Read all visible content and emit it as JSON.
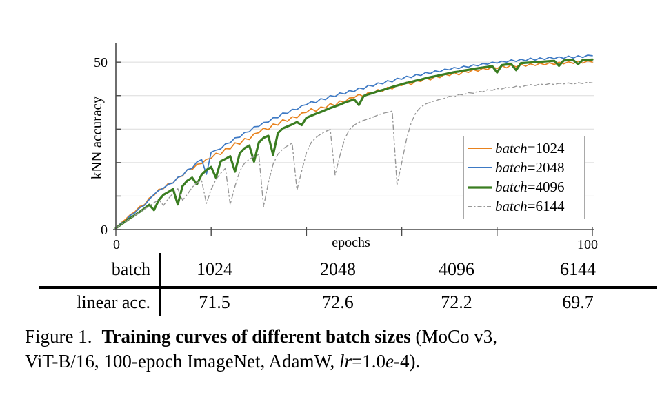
{
  "style": {
    "background": "#ffffff",
    "grid_color": "#dbdbdb",
    "axis_color": "#4a4a4a",
    "text_color": "#000000",
    "legend_border": "#a9a9a9"
  },
  "chart_data": {
    "type": "line",
    "xlabel": "epochs",
    "ylabel": "kNN accuracy",
    "xlim": [
      0,
      100
    ],
    "ylim": [
      0,
      55.8
    ],
    "xticks": [
      0,
      20,
      40,
      60,
      80,
      100
    ],
    "xtick_labels": [
      "0",
      "",
      "",
      "",
      "",
      "100"
    ],
    "yticks": [
      0,
      10,
      20,
      30,
      40,
      50
    ],
    "ytick_labels": [
      "0",
      "",
      "",
      "",
      "",
      "50"
    ],
    "grid": "horizontal",
    "legend_position": "lower-right-inside",
    "x_start": 0,
    "x_step": 1,
    "series": [
      {
        "name": "batch=1024",
        "legend_var": "batch",
        "legend_val": "=1024",
        "color": "#E8821E",
        "width": 1.7,
        "dash": "",
        "values": [
          0.5,
          1.9,
          3.0,
          4.4,
          5.3,
          6.9,
          7.4,
          9.4,
          10.2,
          12.0,
          12.2,
          13.8,
          13.9,
          15.6,
          16.0,
          17.9,
          17.9,
          19.5,
          19.7,
          21.0,
          21.3,
          22.8,
          22.4,
          24.2,
          24.1,
          25.9,
          25.5,
          27.2,
          26.9,
          28.6,
          28.9,
          30.3,
          29.8,
          31.5,
          31.2,
          32.8,
          32.3,
          33.7,
          33.4,
          34.8,
          35.0,
          36.1,
          35.3,
          36.6,
          36.3,
          37.6,
          37.0,
          38.4,
          38.0,
          39.3,
          39.4,
          40.4,
          39.7,
          41.0,
          40.6,
          41.8,
          41.3,
          42.5,
          42.0,
          43.2,
          43.0,
          44.0,
          43.3,
          44.5,
          44.2,
          45.3,
          44.7,
          45.8,
          45.4,
          46.4,
          46.0,
          46.9,
          46.2,
          47.3,
          46.9,
          47.8,
          47.3,
          48.2,
          47.8,
          48.6,
          48.1,
          48.9,
          48.3,
          49.2,
          48.6,
          49.4,
          48.8,
          49.5,
          49.0,
          49.7,
          49.2,
          49.8,
          49.3,
          50.0,
          49.5,
          50.1,
          49.6,
          50.3,
          49.7,
          50.4,
          50.0
        ]
      },
      {
        "name": "batch=2048",
        "legend_var": "batch",
        "legend_val": "=2048",
        "color": "#3D79C4",
        "width": 1.7,
        "dash": "",
        "values": [
          0.5,
          1.8,
          2.6,
          4.2,
          5.0,
          6.5,
          7.2,
          9.0,
          10.5,
          11.7,
          12.4,
          13.5,
          13.9,
          15.6,
          16.1,
          17.9,
          18.3,
          20.2,
          20.9,
          16.5,
          23.1,
          23.7,
          24.1,
          25.6,
          25.9,
          27.4,
          27.6,
          29.0,
          29.2,
          30.7,
          30.8,
          32.0,
          32.1,
          33.4,
          33.4,
          34.8,
          34.7,
          35.9,
          35.8,
          37.0,
          37.3,
          38.2,
          37.9,
          39.1,
          38.8,
          40.0,
          39.7,
          40.8,
          40.5,
          41.5,
          41.2,
          42.3,
          42.0,
          43.1,
          42.8,
          43.8,
          43.5,
          44.5,
          44.1,
          45.2,
          44.9,
          45.8,
          45.4,
          46.3,
          46.0,
          46.9,
          46.6,
          47.4,
          47.1,
          47.9,
          47.7,
          48.4,
          48.1,
          48.8,
          48.5,
          49.2,
          48.9,
          49.6,
          49.4,
          50.0,
          49.7,
          50.3,
          50.0,
          50.7,
          50.2,
          50.9,
          50.4,
          51.2,
          50.6,
          51.3,
          50.8,
          51.5,
          51.0,
          51.6,
          51.1,
          51.8,
          51.2,
          51.9,
          51.4,
          52.1,
          51.9
        ]
      },
      {
        "name": "batch=4096",
        "legend_var": "batch",
        "legend_val": "=4096",
        "color": "#3A7D21",
        "width": 3.2,
        "dash": "",
        "values": [
          0.4,
          1.4,
          2.4,
          3.4,
          4.3,
          5.3,
          6.3,
          7.4,
          5.8,
          8.8,
          10.4,
          11.2,
          12.1,
          7.5,
          13.0,
          14.6,
          15.5,
          13.5,
          16.4,
          17.8,
          18.7,
          15.5,
          20.4,
          21.1,
          21.9,
          17.3,
          22.8,
          24.3,
          25.1,
          20.3,
          26.0,
          27.4,
          28.0,
          22.3,
          28.8,
          30.2,
          30.8,
          31.4,
          32.1,
          31.2,
          33.4,
          34.0,
          34.6,
          35.1,
          35.7,
          36.3,
          36.8,
          37.3,
          37.9,
          38.4,
          38.9,
          37.2,
          39.9,
          40.4,
          40.8,
          41.3,
          41.7,
          42.1,
          42.6,
          43.0,
          43.4,
          43.8,
          44.1,
          44.5,
          44.8,
          45.2,
          45.5,
          45.8,
          46.1,
          46.4,
          46.7,
          47.0,
          47.2,
          47.5,
          47.7,
          48.0,
          48.2,
          48.4,
          48.6,
          48.8,
          46.9,
          49.1,
          49.3,
          49.4,
          47.6,
          49.7,
          49.8,
          49.9,
          50.0,
          50.1,
          50.2,
          50.3,
          50.4,
          48.9,
          50.5,
          50.6,
          50.6,
          49.4,
          50.7,
          50.7,
          50.8
        ]
      },
      {
        "name": "batch=6144",
        "legend_var": "batch",
        "legend_val": "=6144",
        "color": "#979797",
        "width": 1.4,
        "dash": "7 4 1.5 4",
        "values": [
          0.4,
          1.4,
          2.3,
          3.3,
          4.2,
          5.2,
          6.1,
          7.0,
          8.0,
          8.9,
          7.2,
          9.2,
          10.8,
          12.2,
          8.8,
          10.5,
          12.6,
          14.0,
          14.6,
          7.8,
          12.0,
          15.0,
          16.8,
          18.3,
          7.5,
          13.0,
          17.5,
          19.8,
          21.0,
          21.8,
          22.4,
          6.8,
          14.0,
          19.5,
          22.5,
          24.0,
          25.0,
          25.8,
          11.8,
          17.5,
          23.0,
          26.0,
          27.5,
          28.5,
          29.3,
          29.9,
          16.3,
          22.0,
          27.0,
          29.8,
          31.2,
          32.0,
          32.6,
          33.1,
          33.6,
          34.2,
          34.7,
          35.0,
          35.4,
          13.4,
          20.0,
          27.0,
          32.0,
          35.0,
          36.6,
          37.5,
          38.0,
          38.5,
          38.9,
          39.2,
          39.8,
          39.6,
          40.4,
          40.2,
          40.9,
          40.7,
          41.3,
          41.1,
          41.8,
          41.6,
          42.1,
          42.0,
          42.5,
          42.3,
          42.8,
          42.6,
          43.0,
          43.3,
          43.0,
          43.5,
          43.2,
          43.6,
          43.3,
          43.7,
          43.5,
          43.8,
          43.4,
          43.9,
          43.6,
          44.0,
          43.8
        ]
      }
    ]
  },
  "table": {
    "rows": [
      {
        "label": "batch",
        "values": [
          "1024",
          "2048",
          "4096",
          "6144"
        ]
      },
      {
        "label": "linear acc.",
        "values": [
          "71.5",
          "72.6",
          "72.2",
          "69.7"
        ]
      }
    ]
  },
  "caption": {
    "label": "Figure 1.",
    "bold_title": "Training curves of different batch sizes",
    "after_bold": " (MoCo v3,",
    "line2_pre": "ViT-B/16, 100-epoch ImageNet, AdamW, ",
    "lr": "lr",
    "eq": "=1.0",
    "e": "e",
    "tail": "-4)."
  }
}
